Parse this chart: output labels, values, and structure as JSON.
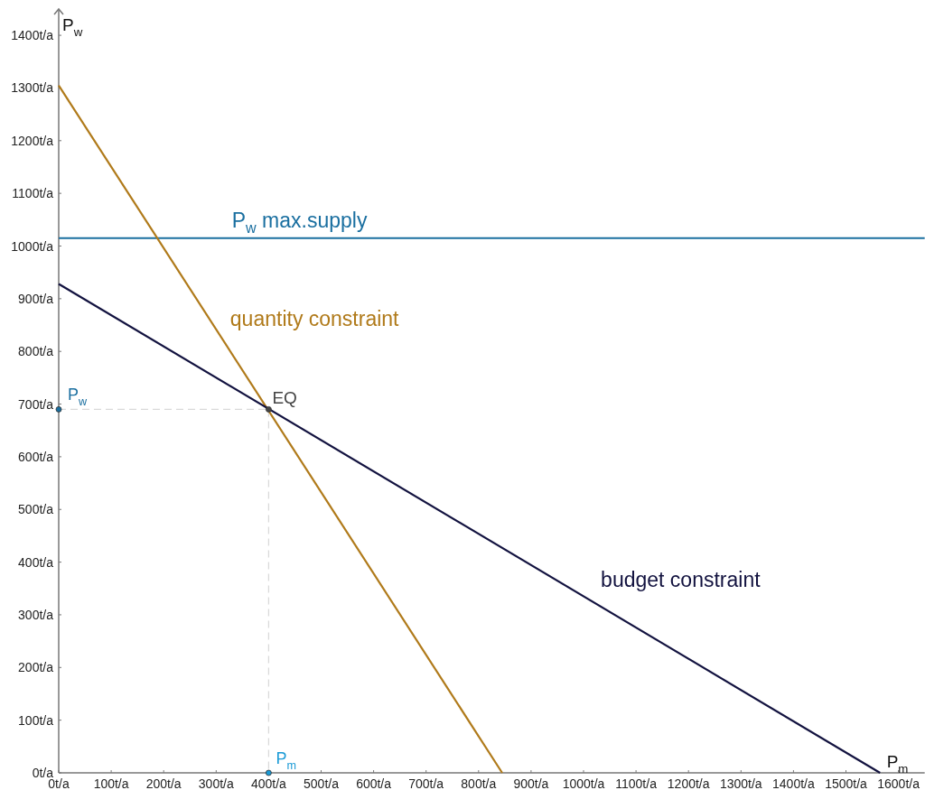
{
  "chart_data": {
    "type": "line",
    "xlabel": "P$_{m}$",
    "ylabel": "P$_{w}$",
    "xlim": [
      0,
      1650
    ],
    "ylim": [
      0,
      1450
    ],
    "xticks": [
      {
        "value": 0,
        "label": "0t/a"
      },
      {
        "value": 100,
        "label": "100t/a"
      },
      {
        "value": 200,
        "label": "200t/a"
      },
      {
        "value": 300,
        "label": "300t/a"
      },
      {
        "value": 400,
        "label": "400t/a"
      },
      {
        "value": 500,
        "label": "500t/a"
      },
      {
        "value": 600,
        "label": "600t/a"
      },
      {
        "value": 700,
        "label": "700t/a"
      },
      {
        "value": 800,
        "label": "800t/a"
      },
      {
        "value": 900,
        "label": "900t/a"
      },
      {
        "value": 1000,
        "label": "1000t/a"
      },
      {
        "value": 1100,
        "label": "1100t/a"
      },
      {
        "value": 1200,
        "label": "1200t/a"
      },
      {
        "value": 1300,
        "label": "1300t/a"
      },
      {
        "value": 1400,
        "label": "1400t/a"
      },
      {
        "value": 1500,
        "label": "1500t/a"
      },
      {
        "value": 1600,
        "label": "1600t/a"
      }
    ],
    "yticks": [
      {
        "value": 0,
        "label": "0t/a"
      },
      {
        "value": 100,
        "label": "100t/a"
      },
      {
        "value": 200,
        "label": "200t/a"
      },
      {
        "value": 300,
        "label": "300t/a"
      },
      {
        "value": 400,
        "label": "400t/a"
      },
      {
        "value": 500,
        "label": "500t/a"
      },
      {
        "value": 600,
        "label": "600t/a"
      },
      {
        "value": 700,
        "label": "700t/a"
      },
      {
        "value": 800,
        "label": "800t/a"
      },
      {
        "value": 900,
        "label": "900t/a"
      },
      {
        "value": 1000,
        "label": "1000t/a"
      },
      {
        "value": 1100,
        "label": "1100t/a"
      },
      {
        "value": 1200,
        "label": "1200t/a"
      },
      {
        "value": 1300,
        "label": "1300t/a"
      },
      {
        "value": 1400,
        "label": "1400t/a"
      }
    ],
    "grid": false,
    "series": [
      {
        "name": "P$_{w}$ max.supply",
        "color": "#1a6fa0",
        "x": [
          0,
          1650
        ],
        "values": [
          1015,
          1015
        ]
      },
      {
        "name": "quantity constraint",
        "color": "#b07a1a",
        "x": [
          0,
          845
        ],
        "values": [
          1305,
          0
        ]
      },
      {
        "name": "budget constraint",
        "color": "#12123f",
        "x": [
          0,
          1565
        ],
        "values": [
          928,
          0
        ]
      },
      {
        "color": "#d9d9d9",
        "line_style": "dashed",
        "x": [
          0,
          400
        ],
        "values": [
          690,
          690
        ]
      },
      {
        "color": "#d9d9d9",
        "line_style": "dashed",
        "x": [
          400,
          400
        ],
        "values": [
          690,
          0
        ]
      },
      {
        "type": "scatter",
        "name": "P$_{w}$",
        "color": "#1a6fa0",
        "marker": "circle",
        "x": [
          0
        ],
        "values": [
          690
        ]
      },
      {
        "type": "scatter",
        "name": "P$_{m}$",
        "color": "#1a9ad6",
        "marker": "circle",
        "x": [
          400
        ],
        "values": [
          0
        ]
      },
      {
        "type": "scatter",
        "name": "EQ",
        "color": "#444444",
        "marker": "circle",
        "x": [
          400
        ],
        "values": [
          690
        ]
      }
    ]
  }
}
